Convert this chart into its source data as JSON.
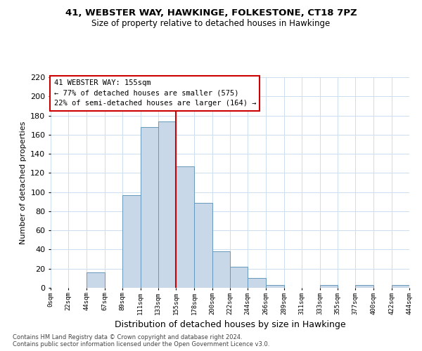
{
  "title_line1": "41, WEBSTER WAY, HAWKINGE, FOLKESTONE, CT18 7PZ",
  "title_line2": "Size of property relative to detached houses in Hawkinge",
  "xlabel": "Distribution of detached houses by size in Hawkinge",
  "ylabel": "Number of detached properties",
  "bin_edges": [
    0,
    22,
    44,
    67,
    89,
    111,
    133,
    155,
    178,
    200,
    222,
    244,
    266,
    289,
    311,
    333,
    355,
    377,
    400,
    422,
    444
  ],
  "bar_heights": [
    0,
    0,
    16,
    0,
    97,
    168,
    174,
    127,
    89,
    38,
    22,
    10,
    3,
    0,
    0,
    3,
    0,
    3,
    0,
    3
  ],
  "bar_color": "#c8d8e8",
  "bar_edge_color": "#6699bb",
  "vline_x": 155,
  "vline_color": "#cc0000",
  "annotation_title": "41 WEBSTER WAY: 155sqm",
  "annotation_line2": "← 77% of detached houses are smaller (575)",
  "annotation_line3": "22% of semi-detached houses are larger (164) →",
  "annotation_box_color": "#cc0000",
  "annotation_fill": "#ffffff",
  "ylim": [
    0,
    220
  ],
  "yticks": [
    0,
    20,
    40,
    60,
    80,
    100,
    120,
    140,
    160,
    180,
    200,
    220
  ],
  "xtick_labels": [
    "0sqm",
    "22sqm",
    "44sqm",
    "67sqm",
    "89sqm",
    "111sqm",
    "133sqm",
    "155sqm",
    "178sqm",
    "200sqm",
    "222sqm",
    "244sqm",
    "266sqm",
    "289sqm",
    "311sqm",
    "333sqm",
    "355sqm",
    "377sqm",
    "400sqm",
    "422sqm",
    "444sqm"
  ],
  "footer_line1": "Contains HM Land Registry data © Crown copyright and database right 2024.",
  "footer_line2": "Contains public sector information licensed under the Open Government Licence v3.0.",
  "bg_color": "#ffffff",
  "grid_color": "#ccddee",
  "fig_width": 6.0,
  "fig_height": 5.0
}
